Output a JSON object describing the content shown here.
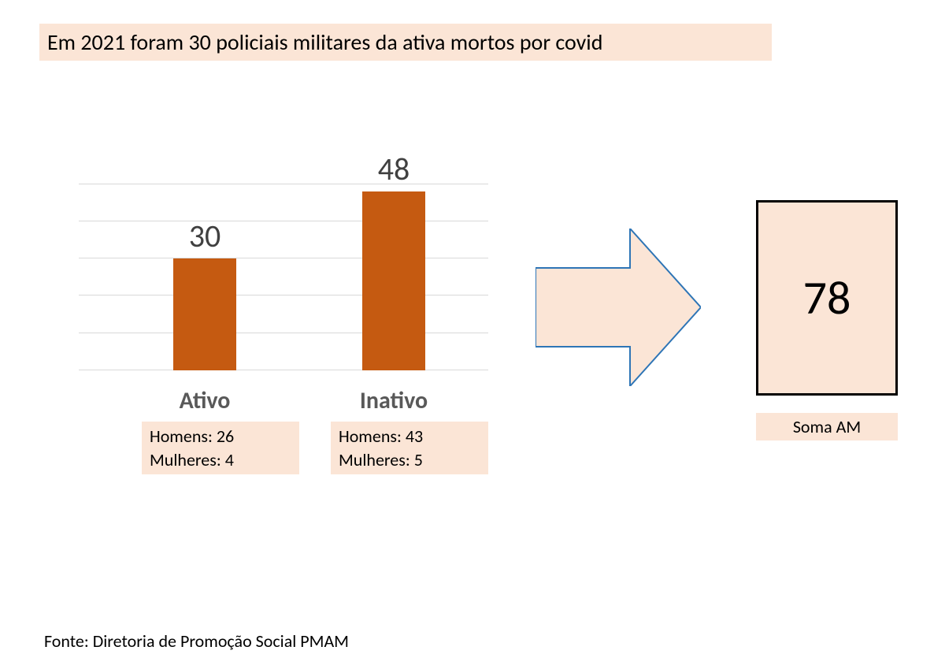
{
  "title": "Em 2021 foram 30 policiais militares da ativa mortos por covid",
  "chart": {
    "type": "bar",
    "ymax": 55,
    "grid_step": 10,
    "grid_color": "#d9d9d9",
    "bar_color": "#c55a11",
    "value_color": "#404040",
    "label_color": "#595959",
    "highlight_bg": "#fbe5d6",
    "value_fontsize": 40,
    "label_fontsize": 30,
    "bars": [
      {
        "label": "Ativo",
        "value": 30,
        "homens": "Homens: 26",
        "mulheres": "Mulheres: 4"
      },
      {
        "label": "Inativo",
        "value": 48,
        "homens": "Homens: 43",
        "mulheres": "Mulheres: 5"
      }
    ]
  },
  "arrow": {
    "fill": "#fbe5d6",
    "stroke": "#2e75b6"
  },
  "total": {
    "value": 78,
    "label": "Soma AM",
    "box_bg": "#fbe5d6",
    "label_bg": "#fbe5d6"
  },
  "source": "Fonte: Diretoria de Promoção Social PMAM"
}
